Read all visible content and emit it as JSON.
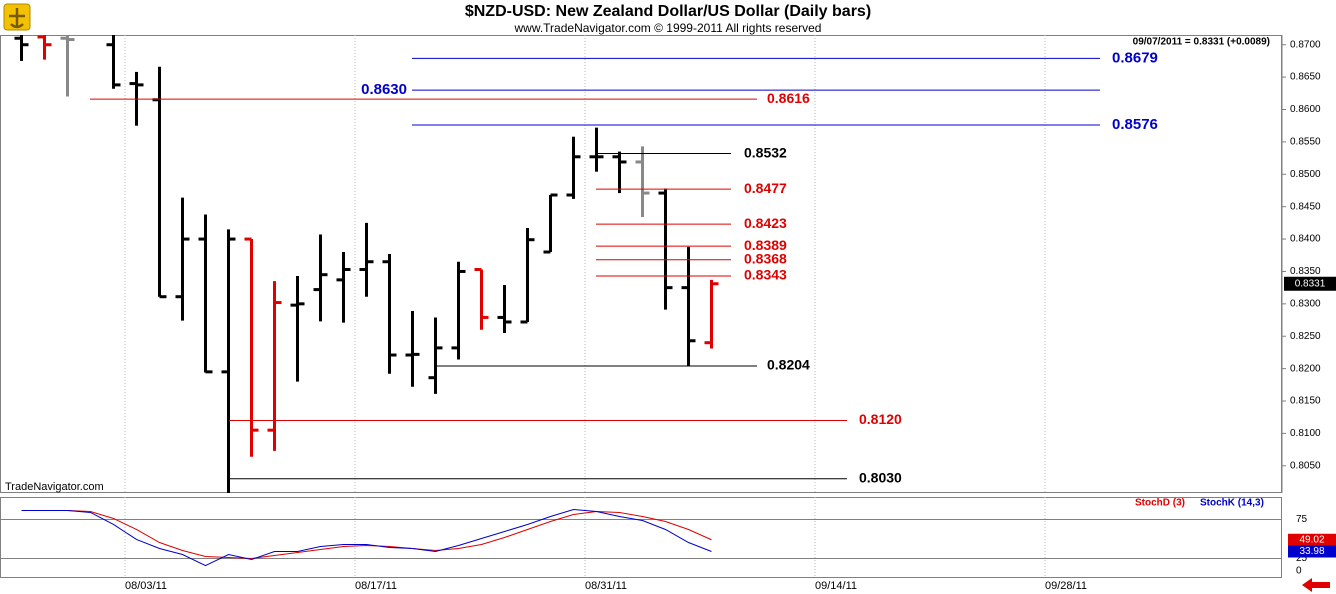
{
  "chart_data": [
    {
      "type": "ohlc",
      "title": "$NZD-USD:  New Zealand Dollar/US Dollar  (Daily bars)",
      "subtitle": "www.TradeNavigator.com © 1999-2011 All rights reserved",
      "header_note": "09/07/2011 = 0.8331 (+0.0089)",
      "watermark": "TradeNavigator.com",
      "categories": [
        null,
        null,
        null,
        null,
        null,
        "08/03/11",
        null,
        null,
        null,
        null,
        null,
        null,
        null,
        null,
        null,
        "08/17/11",
        null,
        null,
        null,
        null,
        null,
        null,
        null,
        null,
        null,
        "08/31/11",
        null,
        null,
        null,
        null,
        null,
        null,
        null,
        null,
        null,
        "09/14/11",
        null,
        null,
        null,
        null,
        null,
        null,
        null,
        null,
        null,
        "09/28/11",
        null,
        null,
        null,
        null,
        null,
        null,
        null,
        null,
        null
      ],
      "open": [
        0.871,
        0.8712,
        0.871,
        null,
        0.87,
        0.864,
        0.8615,
        0.8311,
        0.84,
        0.8195,
        0.84,
        0.8105,
        0.8298,
        0.8322,
        0.8337,
        0.8353,
        0.8365,
        0.8221,
        0.8186,
        0.8232,
        0.8353,
        0.8279,
        0.8272,
        0.838,
        0.8468,
        0.8527,
        0.8527,
        0.8519,
        0.8471,
        0.8325,
        0.824,
        null,
        null,
        null,
        null,
        null,
        null,
        null,
        null,
        null,
        null,
        null,
        null,
        null,
        null,
        null,
        null,
        null,
        null,
        null,
        null,
        null,
        null,
        null,
        null
      ],
      "high": [
        0.8725,
        0.872,
        0.8725,
        null,
        0.8725,
        0.8658,
        0.8666,
        0.8464,
        0.8438,
        0.8415,
        0.84,
        0.8335,
        0.8343,
        0.8407,
        0.838,
        0.8425,
        0.8377,
        0.8289,
        0.8279,
        0.8365,
        0.8353,
        0.8329,
        0.8417,
        0.8468,
        0.8558,
        0.8572,
        0.8535,
        0.8543,
        0.8478,
        0.8388,
        0.8337,
        null,
        null,
        null,
        null,
        null,
        null,
        null,
        null,
        null,
        null,
        null,
        null,
        null,
        null,
        null,
        null,
        null,
        null,
        null,
        null,
        null,
        null,
        null,
        null
      ],
      "low": [
        0.8675,
        0.8677,
        0.862,
        null,
        0.8632,
        0.8575,
        0.8311,
        0.8274,
        0.8194,
        0.8005,
        0.8064,
        0.8073,
        0.818,
        0.8273,
        0.8271,
        0.8311,
        0.8192,
        0.8172,
        0.8161,
        0.8214,
        0.826,
        0.8255,
        0.8272,
        0.838,
        0.8462,
        0.8504,
        0.8471,
        0.8434,
        0.8291,
        0.8204,
        0.8231,
        null,
        null,
        null,
        null,
        null,
        null,
        null,
        null,
        null,
        null,
        null,
        null,
        null,
        null,
        null,
        null,
        null,
        null,
        null,
        null,
        null,
        null,
        null,
        null
      ],
      "close": [
        0.87,
        0.87,
        0.8708,
        null,
        0.8638,
        0.8638,
        0.8311,
        0.84,
        0.8195,
        0.84,
        0.8105,
        0.8302,
        0.83,
        0.8345,
        0.8353,
        0.8365,
        0.8221,
        0.8222,
        0.8232,
        0.835,
        0.8279,
        0.8272,
        0.8399,
        0.8468,
        0.8527,
        0.8527,
        0.8519,
        0.8471,
        0.8325,
        0.8243,
        0.8331,
        null,
        null,
        null,
        null,
        null,
        null,
        null,
        null,
        null,
        null,
        null,
        null,
        null,
        null,
        null,
        null,
        null,
        null,
        null,
        null,
        null,
        null,
        null,
        null
      ],
      "colors": [
        "#000000",
        "#e00000",
        "#888888",
        null,
        "#000000",
        "#000000",
        "#000000",
        "#000000",
        "#000000",
        "#000000",
        "#e00000",
        "#e00000",
        "#000000",
        "#000000",
        "#000000",
        "#000000",
        "#000000",
        "#000000",
        "#000000",
        "#000000",
        "#e00000",
        "#000000",
        "#000000",
        "#000000",
        "#000000",
        "#000000",
        "#000000",
        "#888888",
        "#000000",
        "#000000",
        "#e00000",
        null,
        null,
        null,
        null,
        null,
        null,
        null,
        null,
        null,
        null,
        null,
        null,
        null,
        null,
        null,
        null,
        null,
        null,
        null,
        null,
        null,
        null,
        null,
        null
      ],
      "ylim": [
        0.8008,
        0.8715
      ],
      "yticks": [
        {
          "value": 0.805,
          "label": "0.8050"
        },
        {
          "value": 0.81,
          "label": "0.8100"
        },
        {
          "value": 0.815,
          "label": "0.8150"
        },
        {
          "value": 0.82,
          "label": "0.8200"
        },
        {
          "value": 0.825,
          "label": "0.8250"
        },
        {
          "value": 0.83,
          "label": "0.8300"
        },
        {
          "value": 0.835,
          "label": "0.8350"
        },
        {
          "value": 0.84,
          "label": "0.8400"
        },
        {
          "value": 0.845,
          "label": "0.8450"
        },
        {
          "value": 0.85,
          "label": "0.8500"
        },
        {
          "value": 0.855,
          "label": "0.8550"
        },
        {
          "value": 0.86,
          "label": "0.8600"
        },
        {
          "value": 0.865,
          "label": "0.8650"
        },
        {
          "value": 0.87,
          "label": "0.8700"
        }
      ],
      "levels": [
        {
          "value": 0.8679,
          "label": "0.8679",
          "color": "#0000cc"
        },
        {
          "value": 0.863,
          "label": "0.8630",
          "color": "#0000cc"
        },
        {
          "value": 0.8576,
          "label": "0.8576",
          "color": "#0000cc"
        },
        {
          "value": 0.8616,
          "label": "0.8616",
          "color": "#e00000"
        },
        {
          "value": 0.8532,
          "label": "0.8532",
          "color": "#000000"
        },
        {
          "value": 0.8477,
          "label": "0.8477",
          "color": "#e00000"
        },
        {
          "value": 0.8423,
          "label": "0.8423",
          "color": "#e00000"
        },
        {
          "value": 0.8389,
          "label": "0.8389",
          "color": "#e00000"
        },
        {
          "value": 0.8368,
          "label": "0.8368",
          "color": "#e00000"
        },
        {
          "value": 0.8343,
          "label": "0.8343",
          "color": "#e00000"
        },
        {
          "value": 0.8204,
          "label": "0.8204",
          "color": "#000000"
        },
        {
          "value": 0.812,
          "label": "0.8120",
          "color": "#e00000"
        },
        {
          "value": 0.803,
          "label": "0.8030",
          "color": "#000000"
        }
      ]
    },
    {
      "type": "line",
      "ylim": [
        0,
        100
      ],
      "yticks": [
        0,
        25,
        75
      ],
      "series": [
        {
          "name": "StochD (3)",
          "color": "#e00000",
          "values": [
            86.5,
            86.5,
            86.5,
            85.3,
            76.3,
            62.2,
            45.5,
            35.3,
            27.6,
            26.3,
            25,
            28.8,
            32.7,
            36.5,
            40.4,
            41.7,
            40.4,
            37.8,
            35.3,
            37.8,
            42.9,
            51.9,
            62.2,
            72.4,
            81.4,
            85.3,
            84,
            78.8,
            72.4,
            62.2,
            49.02,
            null,
            null,
            null,
            null,
            null,
            null,
            null,
            null,
            null,
            null,
            null,
            null,
            null,
            null,
            null,
            null,
            null,
            null,
            null,
            null,
            null,
            null,
            null,
            null
          ]
        },
        {
          "name": "StochK (14,3)",
          "color": "#0000cc",
          "values": [
            86.5,
            86.5,
            86.5,
            84,
            68.6,
            49.4,
            37.8,
            30.1,
            16,
            30.1,
            23.7,
            34,
            34,
            40.4,
            42.9,
            42.9,
            39.1,
            37.8,
            34,
            41.7,
            50.6,
            59.6,
            68.6,
            78.8,
            87.8,
            85.3,
            78.8,
            73.7,
            62.2,
            45.5,
            33.98,
            null,
            null,
            null,
            null,
            null,
            null,
            null,
            null,
            null,
            null,
            null,
            null,
            null,
            null,
            null,
            null,
            null,
            null,
            null,
            null,
            null,
            null,
            null,
            null
          ]
        }
      ]
    }
  ]
}
